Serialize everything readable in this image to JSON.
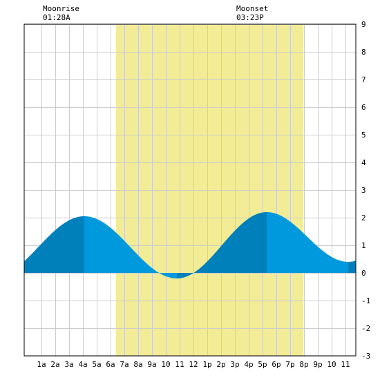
{
  "colors": {
    "background": "#ffffff",
    "plot_background": "#ffffff",
    "grid": "#cccccc",
    "daylight": "#f2ec96",
    "tide_light": "#0099dd",
    "tide_dark": "#0080bb",
    "axis": "#000000"
  },
  "moon": {
    "rise_label": "Moonrise",
    "rise_time": "01:28A",
    "set_label": "Moonset",
    "set_time": "03:23P"
  },
  "chart_data": {
    "type": "area",
    "title": "",
    "xlabel": "",
    "ylabel": "",
    "xlim": [
      -0.25,
      23.75
    ],
    "ylim": [
      -3,
      9
    ],
    "grid": true,
    "x_tick_labels": [
      {
        "hour": 1,
        "label": "1a"
      },
      {
        "hour": 2,
        "label": "2a"
      },
      {
        "hour": 3,
        "label": "3a"
      },
      {
        "hour": 4,
        "label": "4a"
      },
      {
        "hour": 5,
        "label": "5a"
      },
      {
        "hour": 6,
        "label": "6a"
      },
      {
        "hour": 7,
        "label": "7a"
      },
      {
        "hour": 8,
        "label": "8a"
      },
      {
        "hour": 9,
        "label": "9a"
      },
      {
        "hour": 10,
        "label": "10"
      },
      {
        "hour": 11,
        "label": "11"
      },
      {
        "hour": 12,
        "label": "12"
      },
      {
        "hour": 13,
        "label": "1p"
      },
      {
        "hour": 14,
        "label": "2p"
      },
      {
        "hour": 15,
        "label": "3p"
      },
      {
        "hour": 16,
        "label": "4p"
      },
      {
        "hour": 17,
        "label": "5p"
      },
      {
        "hour": 18,
        "label": "6p"
      },
      {
        "hour": 19,
        "label": "7p"
      },
      {
        "hour": 20,
        "label": "8p"
      },
      {
        "hour": 21,
        "label": "9p"
      },
      {
        "hour": 22,
        "label": "10"
      },
      {
        "hour": 23,
        "label": "11"
      }
    ],
    "y_ticks": [
      -3,
      -2,
      -1,
      0,
      1,
      2,
      3,
      4,
      5,
      6,
      7,
      8,
      9
    ],
    "daylight": {
      "start": 6.4,
      "end": 19.95
    },
    "tide_extremes": [
      {
        "hour": 4.1,
        "height": 2.05,
        "kind": "high"
      },
      {
        "hour": 10.8,
        "height": -0.2,
        "kind": "low"
      },
      {
        "hour": 17.3,
        "height": 2.2,
        "kind": "high"
      },
      {
        "hour": 23.2,
        "height": 0.4,
        "kind": "low"
      }
    ],
    "series": [
      {
        "x": [
          -0.25,
          0,
          1,
          2,
          3,
          4,
          4.1,
          5,
          6,
          7,
          8,
          9,
          10,
          10.8,
          11,
          12,
          13,
          14,
          15,
          16,
          17,
          17.3,
          18,
          19,
          20,
          21,
          22,
          23,
          23.2,
          23.75
        ],
        "values": [
          0.66,
          0.77,
          1.24,
          1.64,
          1.93,
          2.05,
          2.05,
          1.83,
          1.26,
          0.58,
          0.02,
          -0.17,
          -0.2,
          -0.2,
          -0.18,
          0.13,
          0.72,
          1.44,
          1.99,
          2.19,
          2.19,
          2.2,
          2.01,
          1.45,
          0.9,
          0.56,
          0.45,
          0.4,
          0.4,
          0.45
        ]
      }
    ]
  }
}
